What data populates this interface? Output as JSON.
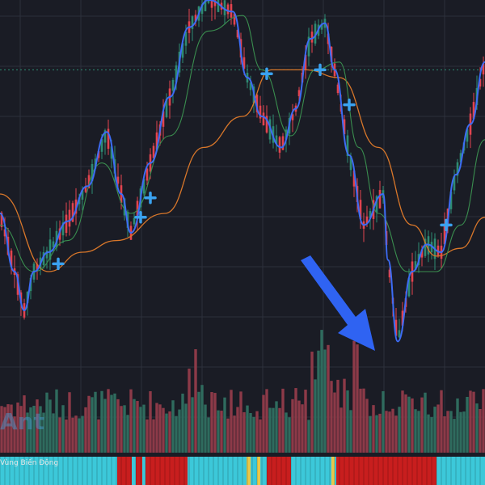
{
  "watermark": "Ant",
  "band_label": "Vùng Biến Động",
  "colors": {
    "background": "#1a1c25",
    "grid": "#2c303b",
    "up_candle": "#2e8b72",
    "down_candle": "#e2434f",
    "fast_ma": "#3d6cf5",
    "mid_ma": "#3a8e4f",
    "slow_ma": "#d9772a",
    "dotted_level": "#2e8b72",
    "volume_up": "#2f6b5e",
    "volume_down": "#8c3a48",
    "marker": "#3aa2f0",
    "arrow": "#2f63f2",
    "band_cyan": "#3cc8d9",
    "band_red": "#c81e1e",
    "band_yellow": "#e8c84a"
  },
  "chart_data": {
    "type": "candlestick",
    "y_range": [
      0,
      1
    ],
    "reference_level": 0.82,
    "fast_ma": [
      [
        0.0,
        0.45
      ],
      [
        0.03,
        0.3
      ],
      [
        0.05,
        0.2
      ],
      [
        0.07,
        0.3
      ],
      [
        0.1,
        0.35
      ],
      [
        0.14,
        0.43
      ],
      [
        0.18,
        0.52
      ],
      [
        0.22,
        0.66
      ],
      [
        0.25,
        0.5
      ],
      [
        0.27,
        0.4
      ],
      [
        0.31,
        0.58
      ],
      [
        0.35,
        0.75
      ],
      [
        0.39,
        0.93
      ],
      [
        0.43,
        1.0
      ],
      [
        0.48,
        0.97
      ],
      [
        0.51,
        0.8
      ],
      [
        0.54,
        0.7
      ],
      [
        0.58,
        0.62
      ],
      [
        0.61,
        0.72
      ],
      [
        0.64,
        0.9
      ],
      [
        0.67,
        0.94
      ],
      [
        0.69,
        0.82
      ],
      [
        0.72,
        0.6
      ],
      [
        0.75,
        0.42
      ],
      [
        0.79,
        0.5
      ],
      [
        0.8,
        0.33
      ],
      [
        0.82,
        0.12
      ],
      [
        0.85,
        0.3
      ],
      [
        0.88,
        0.37
      ],
      [
        0.91,
        0.35
      ],
      [
        0.94,
        0.55
      ],
      [
        0.97,
        0.68
      ],
      [
        1.0,
        0.84
      ]
    ],
    "mid_ma": [
      [
        0.0,
        0.42
      ],
      [
        0.07,
        0.3
      ],
      [
        0.14,
        0.38
      ],
      [
        0.21,
        0.58
      ],
      [
        0.27,
        0.45
      ],
      [
        0.35,
        0.65
      ],
      [
        0.43,
        0.92
      ],
      [
        0.5,
        0.96
      ],
      [
        0.54,
        0.82
      ],
      [
        0.6,
        0.65
      ],
      [
        0.65,
        0.82
      ],
      [
        0.7,
        0.84
      ],
      [
        0.74,
        0.62
      ],
      [
        0.78,
        0.45
      ],
      [
        0.84,
        0.3
      ],
      [
        0.9,
        0.3
      ],
      [
        0.95,
        0.42
      ],
      [
        1.0,
        0.64
      ]
    ],
    "slow_ma": [
      [
        0.0,
        0.5
      ],
      [
        0.1,
        0.3
      ],
      [
        0.17,
        0.35
      ],
      [
        0.24,
        0.38
      ],
      [
        0.34,
        0.45
      ],
      [
        0.42,
        0.62
      ],
      [
        0.5,
        0.7
      ],
      [
        0.56,
        0.82
      ],
      [
        0.63,
        0.82
      ],
      [
        0.7,
        0.8
      ],
      [
        0.78,
        0.62
      ],
      [
        0.85,
        0.42
      ],
      [
        0.9,
        0.34
      ],
      [
        0.95,
        0.36
      ],
      [
        1.0,
        0.44
      ]
    ],
    "markers": [
      [
        0.12,
        0.32
      ],
      [
        0.29,
        0.44
      ],
      [
        0.31,
        0.49
      ],
      [
        0.55,
        0.81
      ],
      [
        0.66,
        0.82
      ],
      [
        0.72,
        0.73
      ],
      [
        0.92,
        0.42
      ]
    ]
  }
}
